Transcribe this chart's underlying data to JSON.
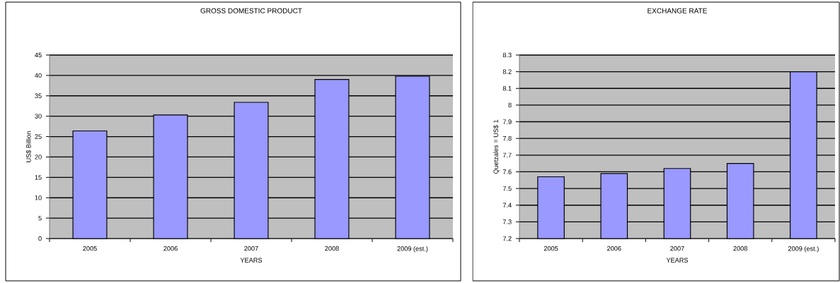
{
  "chart_data": [
    {
      "type": "bar",
      "title": "GROSS DOMESTIC PRODUCT",
      "xlabel": "YEARS",
      "ylabel": "US$ Billion",
      "categories": [
        "2005",
        "2006",
        "2007",
        "2008",
        "2009 (est.)"
      ],
      "values": [
        26.4,
        30.3,
        33.4,
        39.0,
        39.8
      ],
      "color": "#9999ff",
      "ylim": [
        0,
        45
      ],
      "yticks": [
        0,
        5,
        10,
        15,
        20,
        25,
        30,
        35,
        40,
        45
      ],
      "grid": "y"
    },
    {
      "type": "bar",
      "title": "EXCHANGE RATE",
      "xlabel": "YEARS",
      "ylabel": "Quetzales = US$ 1",
      "categories": [
        "2005",
        "2006",
        "2007",
        "2008",
        "2009 (est.)"
      ],
      "values": [
        7.57,
        7.59,
        7.62,
        7.65,
        8.2
      ],
      "color": "#9999ff",
      "ylim": [
        7.2,
        8.3
      ],
      "yticks": [
        7.2,
        7.3,
        7.4,
        7.5,
        7.6,
        7.7,
        7.8,
        7.9,
        8,
        8.1,
        8.2,
        8.3
      ],
      "grid": "y"
    }
  ]
}
